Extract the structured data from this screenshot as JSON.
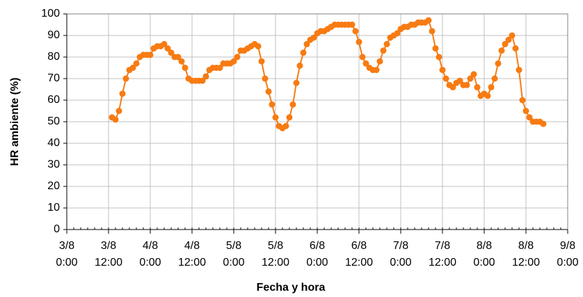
{
  "chart_data": {
    "type": "line",
    "x_label": "Fecha y hora",
    "y_label": "HR ambiente (%)",
    "color": "#f77b12",
    "xlim": [
      "3/8 0:00",
      "9/8 0:00"
    ],
    "xticks": [
      "3/8 0:00",
      "3/8 12:00",
      "4/8 0:00",
      "4/8 12:00",
      "5/8 0:00",
      "5/8 12:00",
      "6/8 0:00",
      "6/8 12:00",
      "7/8 0:00",
      "7/8 12:00",
      "8/8 0:00",
      "8/8 12:00",
      "9/8 0:00"
    ],
    "ylim": [
      0,
      100
    ],
    "yticks": [
      0,
      10,
      20,
      30,
      40,
      50,
      60,
      70,
      80,
      90,
      100
    ],
    "grid": true,
    "x": [
      "3/8 13:00",
      "3/8 14:00",
      "3/8 15:00",
      "3/8 16:00",
      "3/8 17:00",
      "3/8 18:00",
      "3/8 19:00",
      "3/8 20:00",
      "3/8 21:00",
      "3/8 22:00",
      "3/8 23:00",
      "4/8 0:00",
      "4/8 1:00",
      "4/8 2:00",
      "4/8 3:00",
      "4/8 4:00",
      "4/8 5:00",
      "4/8 6:00",
      "4/8 7:00",
      "4/8 8:00",
      "4/8 9:00",
      "4/8 10:00",
      "4/8 11:00",
      "4/8 12:00",
      "4/8 13:00",
      "4/8 14:00",
      "4/8 15:00",
      "4/8 16:00",
      "4/8 17:00",
      "4/8 18:00",
      "4/8 19:00",
      "4/8 20:00",
      "4/8 21:00",
      "4/8 22:00",
      "4/8 23:00",
      "5/8 0:00",
      "5/8 1:00",
      "5/8 2:00",
      "5/8 3:00",
      "5/8 4:00",
      "5/8 5:00",
      "5/8 6:00",
      "5/8 7:00",
      "5/8 8:00",
      "5/8 9:00",
      "5/8 10:00",
      "5/8 11:00",
      "5/8 12:00",
      "5/8 13:00",
      "5/8 14:00",
      "5/8 15:00",
      "5/8 16:00",
      "5/8 17:00",
      "5/8 18:00",
      "5/8 19:00",
      "5/8 20:00",
      "5/8 21:00",
      "5/8 22:00",
      "5/8 23:00",
      "6/8 0:00",
      "6/8 1:00",
      "6/8 2:00",
      "6/8 3:00",
      "6/8 4:00",
      "6/8 5:00",
      "6/8 6:00",
      "6/8 7:00",
      "6/8 8:00",
      "6/8 9:00",
      "6/8 10:00",
      "6/8 11:00",
      "6/8 12:00",
      "6/8 13:00",
      "6/8 14:00",
      "6/8 15:00",
      "6/8 16:00",
      "6/8 17:00",
      "6/8 18:00",
      "6/8 19:00",
      "6/8 20:00",
      "6/8 21:00",
      "6/8 22:00",
      "6/8 23:00",
      "7/8 0:00",
      "7/8 1:00",
      "7/8 2:00",
      "7/8 3:00",
      "7/8 4:00",
      "7/8 5:00",
      "7/8 6:00",
      "7/8 7:00",
      "7/8 8:00",
      "7/8 9:00",
      "7/8 10:00",
      "7/8 11:00",
      "7/8 12:00",
      "7/8 13:00",
      "7/8 14:00",
      "7/8 15:00",
      "7/8 16:00",
      "7/8 17:00",
      "7/8 18:00",
      "7/8 19:00",
      "7/8 20:00",
      "7/8 21:00",
      "7/8 22:00",
      "7/8 23:00",
      "8/8 0:00",
      "8/8 1:00",
      "8/8 2:00",
      "8/8 3:00",
      "8/8 4:00",
      "8/8 5:00",
      "8/8 6:00",
      "8/8 7:00",
      "8/8 8:00",
      "8/8 9:00",
      "8/8 10:00",
      "8/8 11:00",
      "8/8 12:00",
      "8/8 13:00",
      "8/8 14:00",
      "8/8 15:00",
      "8/8 16:00",
      "8/8 17:00"
    ],
    "values": [
      52,
      51,
      55,
      63,
      70,
      74,
      75,
      77,
      80,
      81,
      81,
      81,
      84,
      85,
      85,
      86,
      84,
      82,
      80,
      80,
      78,
      75,
      70,
      69,
      69,
      69,
      69,
      71,
      74,
      75,
      75,
      75,
      77,
      77,
      77,
      78,
      80,
      83,
      83,
      84,
      85,
      86,
      85,
      78,
      70,
      64,
      58,
      52,
      48,
      47,
      48,
      52,
      58,
      68,
      76,
      82,
      86,
      88,
      89,
      91,
      92,
      92,
      93,
      94,
      95,
      95,
      95,
      95,
      95,
      95,
      92,
      87,
      80,
      77,
      75,
      74,
      74,
      78,
      83,
      86,
      89,
      90,
      91,
      93,
      94,
      94,
      95,
      95,
      96,
      96,
      96,
      97,
      92,
      84,
      80,
      74,
      70,
      67,
      66,
      68,
      69,
      67,
      67,
      70,
      72,
      66,
      62,
      63,
      62,
      66,
      70,
      77,
      83,
      86,
      88,
      90,
      84,
      74,
      60,
      55,
      52,
      50,
      50,
      50,
      49
    ]
  }
}
